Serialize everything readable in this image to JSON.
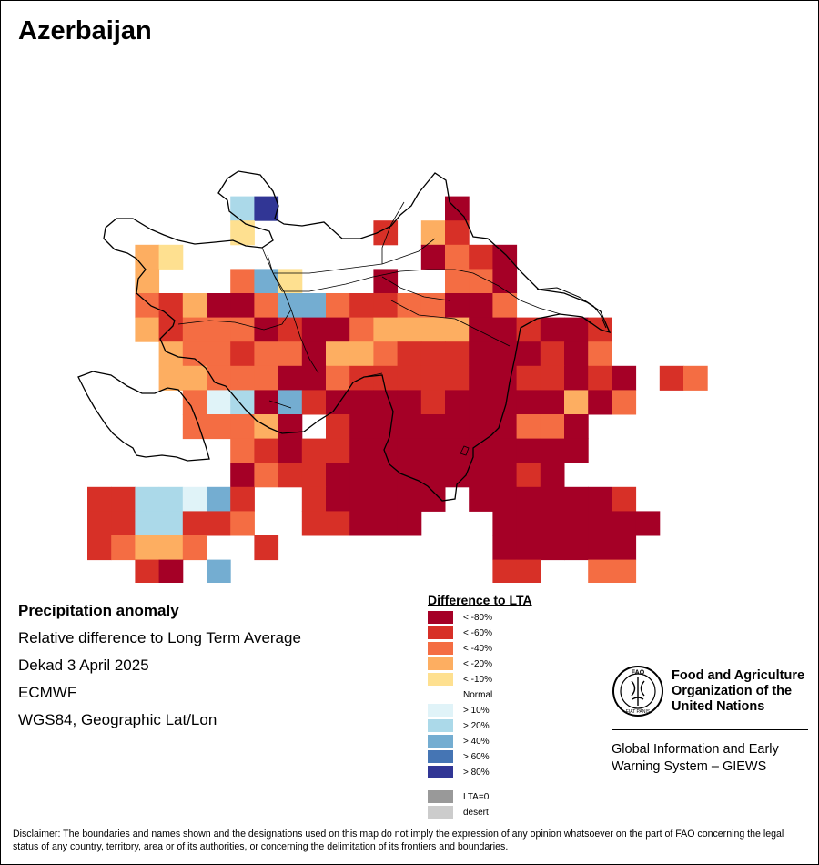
{
  "title": "Azerbaijan",
  "info": {
    "line1": "Precipitation anomaly",
    "line2": "Relative difference to Long Term Average",
    "line3": "Dekad 3 April 2025",
    "line4": "ECMWF",
    "line5": "WGS84, Geographic Lat/Lon"
  },
  "legend": {
    "title": "Difference to LTA",
    "items": [
      {
        "label": "< -80%",
        "color": "#a50026"
      },
      {
        "label": "< -60%",
        "color": "#d73027"
      },
      {
        "label": "< -40%",
        "color": "#f46d43"
      },
      {
        "label": "< -20%",
        "color": "#fdae61"
      },
      {
        "label": "< -10%",
        "color": "#fee090"
      },
      {
        "label": "Normal",
        "color": "#ffffff"
      },
      {
        "label": "> 10%",
        "color": "#e0f3f8"
      },
      {
        "label": "> 20%",
        "color": "#abd9e9"
      },
      {
        "label": "> 40%",
        "color": "#74add1"
      },
      {
        "label": "> 60%",
        "color": "#4575b4"
      },
      {
        "label": "> 80%",
        "color": "#313695"
      }
    ],
    "extra": [
      {
        "label": "LTA=0",
        "color": "#999999"
      },
      {
        "label": "desert",
        "color": "#cccccc"
      }
    ]
  },
  "organization": {
    "name_line1": "Food and Agriculture",
    "name_line2": "Organization of the",
    "name_line3": "United Nations",
    "logo_text_top": "FAO",
    "logo_text_bottom": "FIAT PANIS",
    "system_line1": "Global Information and Early",
    "system_line2": "Warning System – GIEWS"
  },
  "disclaimer": "Disclaimer: The boundaries and names shown and the designations used on this map do not imply the expression of any opinion whatsoever on the part of FAO concerning the legal status of any country, territory, area or of its authorities, or concerning the delimitation of its frontiers and boundaries.",
  "map_data": {
    "grid_rows": [
      {
        "row": 0,
        "cells": "......................."
      },
      {
        "row": 1,
        "cells": "........................"
      }
    ],
    "anomaly_grid": [
      "...........AN..........................",
      "...........AY.......................",
      "......................................"
    ]
  }
}
